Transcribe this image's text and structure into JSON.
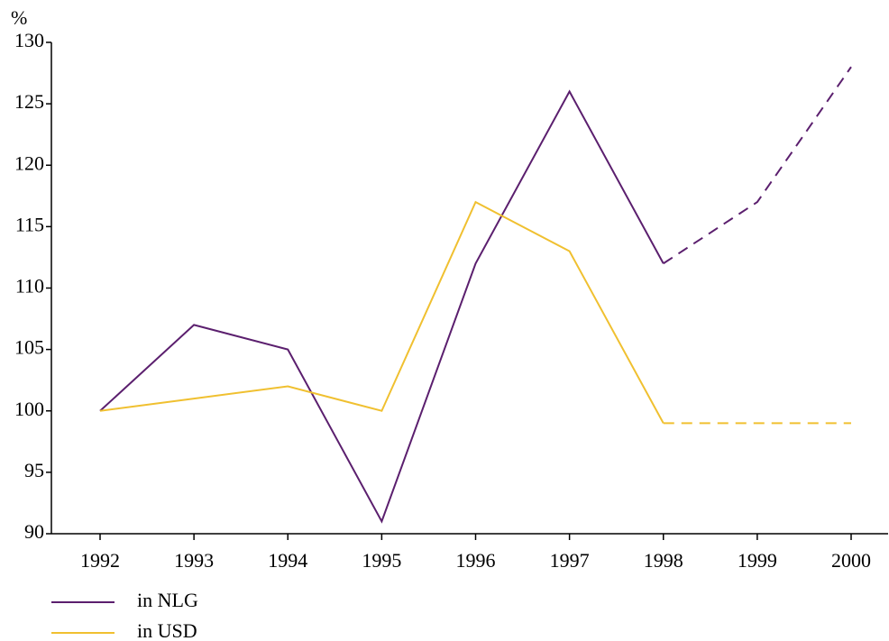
{
  "chart_data": {
    "type": "line",
    "y_unit": "%",
    "categories": [
      "1992",
      "1993",
      "1994",
      "1995",
      "1996",
      "1997",
      "1998",
      "1999",
      "2000"
    ],
    "series": [
      {
        "name": "in NLG",
        "color": "#5b1f6e",
        "values": [
          100,
          107,
          105,
          91,
          112,
          126,
          112,
          117,
          128
        ]
      },
      {
        "name": "in USD",
        "color": "#f0c030",
        "values": [
          100,
          101,
          102,
          100,
          117,
          113,
          99,
          99,
          99
        ]
      }
    ],
    "dashed_from": "1998",
    "ylim": [
      90,
      130
    ],
    "yticks": [
      90,
      95,
      100,
      105,
      110,
      115,
      120,
      125,
      130
    ],
    "grid": false,
    "legend": "bottom-left"
  }
}
